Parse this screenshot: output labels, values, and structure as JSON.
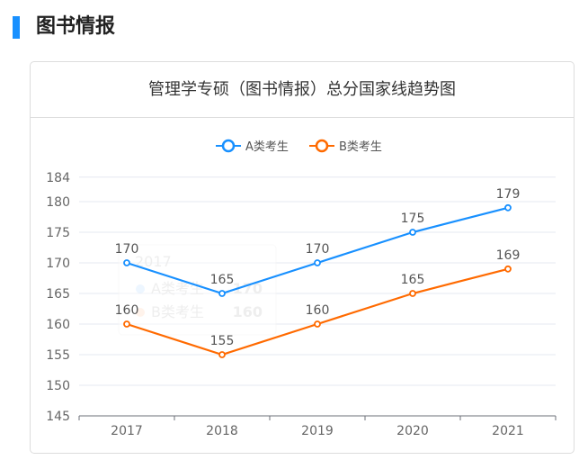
{
  "heading": "图书情报",
  "card_title": "管理学专硕（图书情报）总分国家线趋势图",
  "tooltip": {
    "year": "2017",
    "rows": [
      {
        "name": "A类考生",
        "value": "170"
      },
      {
        "name": "B类考生",
        "value": "160"
      }
    ]
  },
  "chart_data": {
    "type": "line",
    "title": "管理学专硕（图书情报）总分国家线趋势图",
    "categories": [
      "2017",
      "2018",
      "2019",
      "2020",
      "2021"
    ],
    "series": [
      {
        "name": "A类考生",
        "color": "#1890ff",
        "values": [
          170,
          165,
          170,
          175,
          179
        ]
      },
      {
        "name": "B类考生",
        "color": "#ff6a00",
        "values": [
          160,
          155,
          160,
          165,
          169
        ]
      }
    ],
    "ylim": [
      145,
      184
    ],
    "yticks": [
      145,
      150,
      155,
      160,
      165,
      170,
      175,
      180,
      184
    ],
    "grid": true,
    "legend": "top-center",
    "data_labels": true
  }
}
